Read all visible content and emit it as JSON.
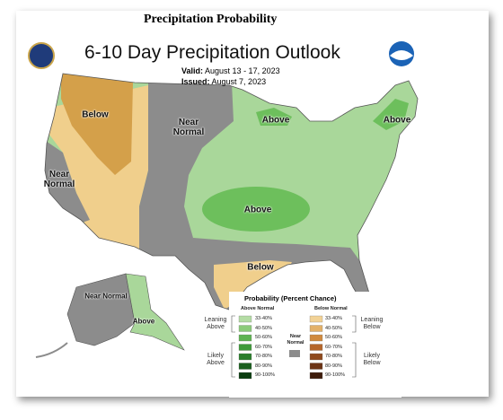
{
  "header": {
    "title": "Precipitation Probability"
  },
  "map": {
    "title": "6-10 Day Precipitation Outlook",
    "valid_label": "Valid:",
    "valid": "August 13 - 17, 2023",
    "issued_label": "Issued:",
    "issued": "August 7, 2023",
    "regions": [
      "Below",
      "Near Normal",
      "Near Normal",
      "Above",
      "Above",
      "Above",
      "Below",
      "Near Normal",
      "Above"
    ]
  },
  "legend": {
    "title": "Probability (Percent Chance)",
    "above": {
      "heading": "Above Normal",
      "bins": [
        {
          "label": "33-40%",
          "color": "#b4dca4"
        },
        {
          "label": "40-50%",
          "color": "#8ccb7a"
        },
        {
          "label": "50-60%",
          "color": "#5fb352"
        },
        {
          "label": "60-70%",
          "color": "#3f9a3a"
        },
        {
          "label": "70-80%",
          "color": "#2a7e2b"
        },
        {
          "label": "80-90%",
          "color": "#1a5e1e"
        },
        {
          "label": "90-100%",
          "color": "#0b3d10"
        }
      ]
    },
    "below": {
      "heading": "Below Normal",
      "bins": [
        {
          "label": "33-40%",
          "color": "#f2d296"
        },
        {
          "label": "40-50%",
          "color": "#e3b169"
        },
        {
          "label": "50-60%",
          "color": "#d08a3e"
        },
        {
          "label": "60-70%",
          "color": "#b5662a"
        },
        {
          "label": "70-80%",
          "color": "#8f4a1e"
        },
        {
          "label": "80-90%",
          "color": "#6b3315"
        },
        {
          "label": "90-100%",
          "color": "#3f1d0c"
        }
      ]
    },
    "near": {
      "label": "Near Normal",
      "color": "#8c8c8c"
    },
    "leaning_above": "Leaning Above",
    "likely_above": "Likely Above",
    "leaning_below": "Leaning Below",
    "likely_below": "Likely Below"
  }
}
